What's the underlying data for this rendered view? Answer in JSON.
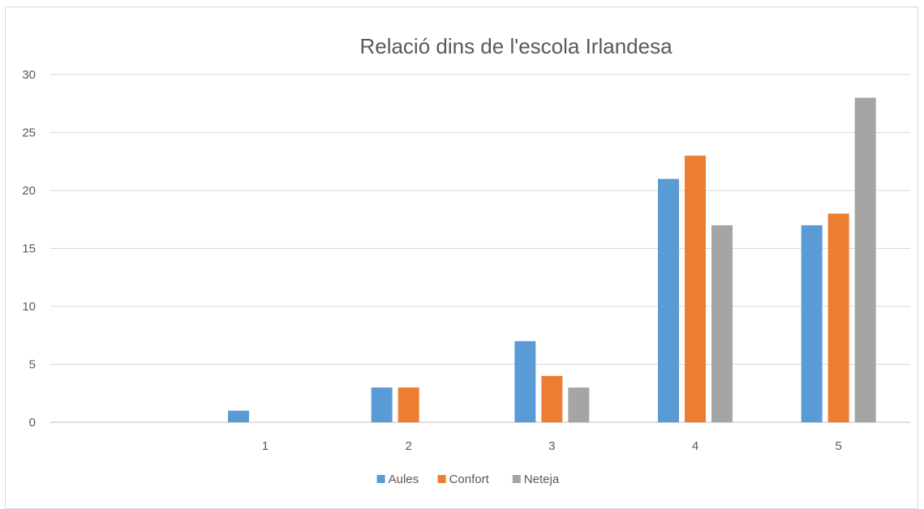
{
  "chart_data": {
    "type": "bar",
    "title": "Relació dins de l'escola Irlandesa",
    "xlabel": "",
    "ylabel": "",
    "categories": [
      "",
      "1",
      "2",
      "3",
      "4",
      "5"
    ],
    "series": [
      {
        "name": "Aules",
        "color": "#5b9bd5",
        "values": [
          0,
          1,
          3,
          7,
          21,
          17
        ]
      },
      {
        "name": "Confort",
        "color": "#ed7d31",
        "values": [
          0,
          0,
          3,
          4,
          23,
          18
        ]
      },
      {
        "name": "Neteja",
        "color": "#a5a5a5",
        "values": [
          0,
          0,
          0,
          3,
          17,
          28
        ]
      }
    ],
    "ylim": [
      0,
      30
    ],
    "yticks": [
      0,
      5,
      10,
      15,
      20,
      25,
      30
    ],
    "grid": true,
    "legend": "bottom"
  }
}
